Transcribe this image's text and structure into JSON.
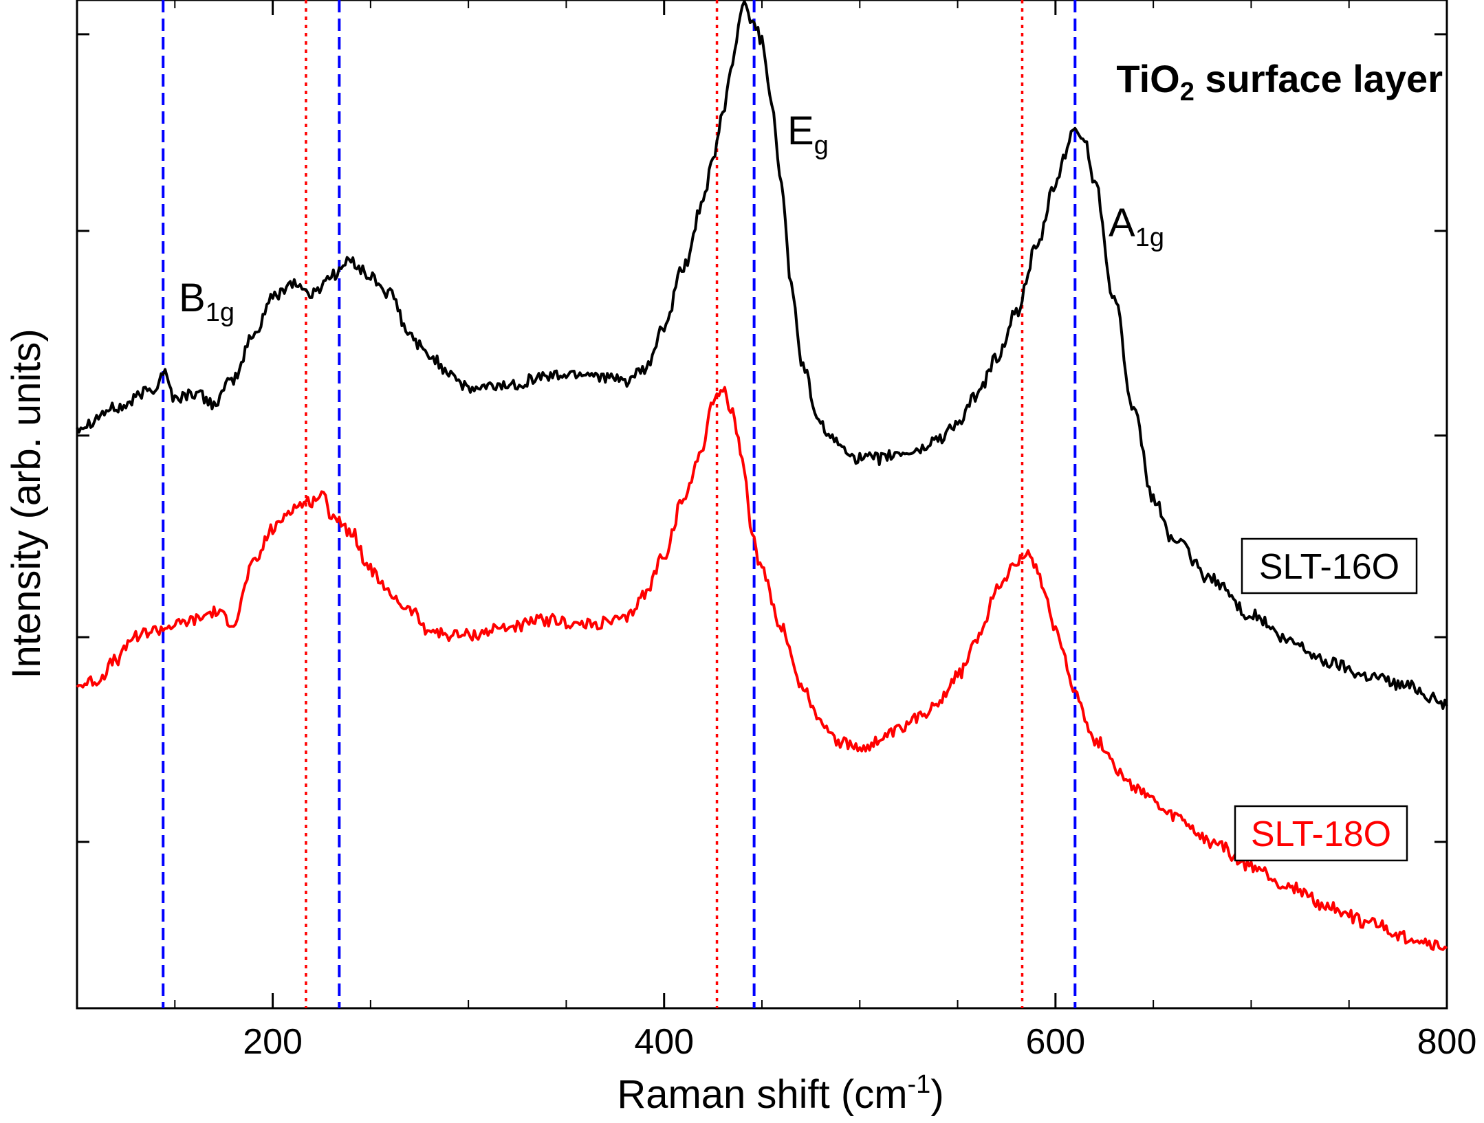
{
  "chart_data": {
    "type": "line",
    "title": "TiO2 surface layer",
    "title_parts": {
      "base": "TiO",
      "sub": "2",
      "rest": " surface layer"
    },
    "xlabel": "Raman shift (cm-1)",
    "xlabel_parts": {
      "base": "Raman shift (cm",
      "sup": "-1",
      "rest": ")"
    },
    "ylabel": "Intensity (arb. units)",
    "xlim": [
      100,
      800
    ],
    "ylim": [
      0,
      1
    ],
    "x_ticks": [
      200,
      400,
      600,
      800
    ],
    "x_minor_ticks": [
      150,
      250,
      300,
      350,
      450,
      500,
      550,
      650,
      700,
      750
    ],
    "y_ticks": [
      0.165,
      0.368,
      0.568,
      0.771,
      0.966
    ],
    "y_tick_labels_shown": false,
    "series": [
      {
        "name": "SLT-16O",
        "color": "#000000",
        "x": [
          100,
          120,
          140,
          144,
          150,
          160,
          170,
          180,
          190,
          200,
          210,
          220,
          230,
          240,
          250,
          260,
          270,
          280,
          290,
          300,
          320,
          340,
          360,
          380,
          390,
          400,
          410,
          420,
          425,
          430,
          435,
          440,
          445,
          450,
          455,
          460,
          465,
          470,
          480,
          490,
          500,
          510,
          520,
          530,
          540,
          550,
          560,
          570,
          580,
          590,
          600,
          605,
          610,
          615,
          620,
          630,
          640,
          650,
          660,
          680,
          700,
          720,
          740,
          760,
          780,
          800
        ],
        "y": [
          0.577,
          0.595,
          0.615,
          0.632,
          0.605,
          0.61,
          0.6,
          0.624,
          0.667,
          0.705,
          0.72,
          0.708,
          0.727,
          0.741,
          0.725,
          0.708,
          0.667,
          0.647,
          0.632,
          0.614,
          0.618,
          0.627,
          0.63,
          0.622,
          0.632,
          0.675,
          0.735,
          0.8,
          0.84,
          0.888,
          0.94,
          0.995,
          0.982,
          0.96,
          0.9,
          0.815,
          0.718,
          0.642,
          0.577,
          0.558,
          0.545,
          0.545,
          0.55,
          0.553,
          0.565,
          0.58,
          0.608,
          0.645,
          0.69,
          0.752,
          0.816,
          0.848,
          0.873,
          0.86,
          0.82,
          0.705,
          0.59,
          0.505,
          0.465,
          0.425,
          0.39,
          0.363,
          0.343,
          0.33,
          0.32,
          0.302
        ]
      },
      {
        "name": "SLT-18O",
        "color": "#ff0000",
        "x": [
          100,
          110,
          120,
          130,
          140,
          150,
          160,
          170,
          180,
          190,
          200,
          210,
          215,
          220,
          225,
          230,
          240,
          250,
          260,
          270,
          280,
          290,
          300,
          320,
          340,
          360,
          380,
          390,
          400,
          410,
          420,
          425,
          430,
          435,
          440,
          445,
          450,
          460,
          470,
          480,
          490,
          500,
          510,
          520,
          530,
          540,
          550,
          560,
          570,
          580,
          585,
          590,
          595,
          600,
          610,
          620,
          640,
          660,
          680,
          700,
          720,
          740,
          760,
          780,
          800
        ],
        "y": [
          0.32,
          0.325,
          0.345,
          0.37,
          0.375,
          0.38,
          0.385,
          0.393,
          0.383,
          0.44,
          0.475,
          0.496,
          0.5,
          0.503,
          0.51,
          0.49,
          0.473,
          0.435,
          0.41,
          0.395,
          0.375,
          0.37,
          0.37,
          0.378,
          0.385,
          0.38,
          0.385,
          0.41,
          0.45,
          0.505,
          0.558,
          0.605,
          0.613,
          0.59,
          0.545,
          0.465,
          0.435,
          0.378,
          0.32,
          0.285,
          0.263,
          0.258,
          0.265,
          0.275,
          0.288,
          0.305,
          0.33,
          0.365,
          0.415,
          0.445,
          0.45,
          0.44,
          0.41,
          0.375,
          0.315,
          0.265,
          0.22,
          0.19,
          0.165,
          0.14,
          0.12,
          0.1,
          0.085,
          0.07,
          0.06
        ]
      }
    ],
    "vertical_lines": [
      {
        "x": 144,
        "color": "#0000ff",
        "style": "dashed"
      },
      {
        "x": 234,
        "color": "#0000ff",
        "style": "dashed"
      },
      {
        "x": 446,
        "color": "#0000ff",
        "style": "dashed"
      },
      {
        "x": 610,
        "color": "#0000ff",
        "style": "dashed"
      },
      {
        "x": 217,
        "color": "#ff0000",
        "style": "dotted"
      },
      {
        "x": 427,
        "color": "#ff0000",
        "style": "dotted"
      },
      {
        "x": 583,
        "color": "#ff0000",
        "style": "dotted"
      }
    ],
    "annotations": [
      {
        "name": "B1g",
        "base": "B",
        "sub": "1g"
      },
      {
        "name": "Eg",
        "base": "E",
        "sub": "g"
      },
      {
        "name": "A1g",
        "base": "A",
        "sub": "1g"
      }
    ],
    "legend": [
      {
        "label": "SLT-16O",
        "color": "#000000"
      },
      {
        "label": "SLT-18O",
        "color": "#ff0000"
      }
    ]
  }
}
